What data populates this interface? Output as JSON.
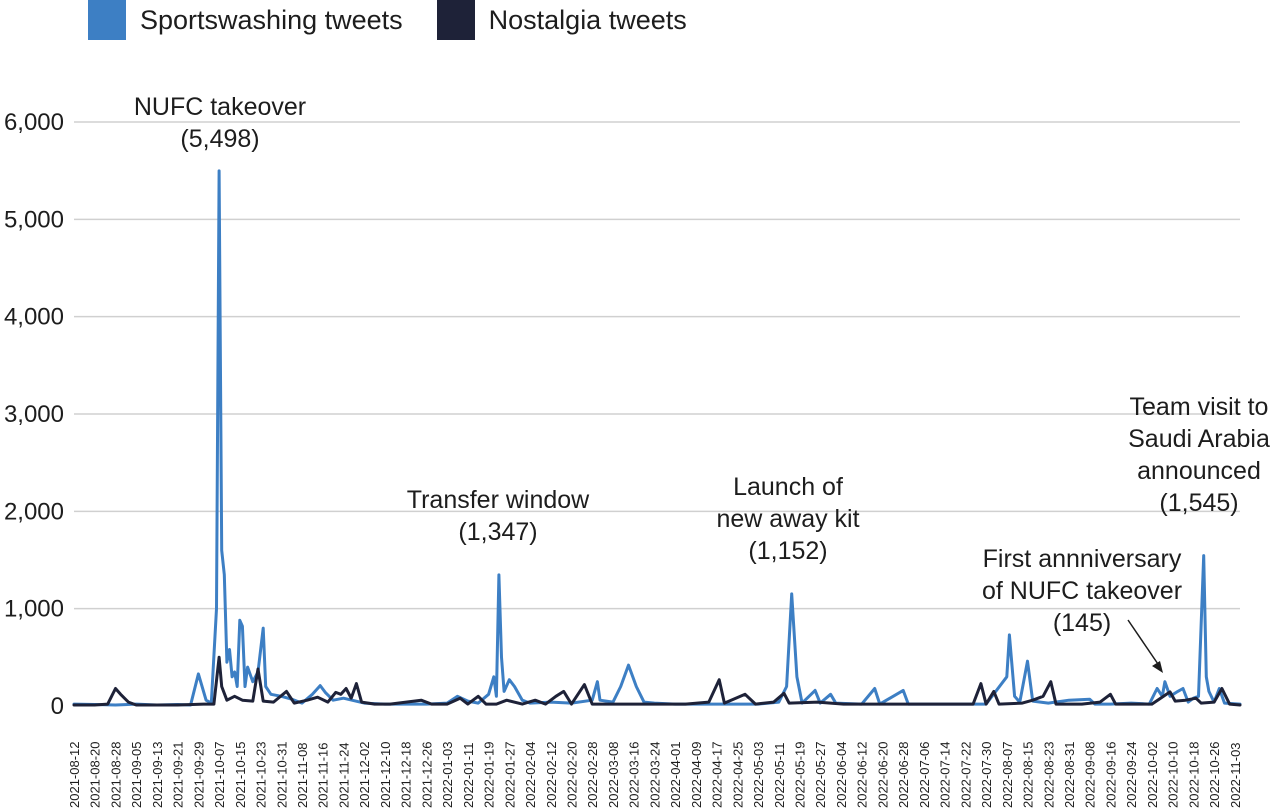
{
  "chart_data": {
    "type": "line",
    "xlabel": "",
    "ylabel": "",
    "ylim": [
      0,
      6000
    ],
    "grid": true,
    "legend_position": "top-left",
    "legend": [
      {
        "name": "Sportswashing tweets",
        "color": "#3d7fc4"
      },
      {
        "name": "Nostalgia tweets",
        "color": "#1e2238"
      }
    ],
    "y_ticks": [
      0,
      1000,
      2000,
      3000,
      4000,
      5000,
      6000
    ],
    "y_tick_labels": [
      "0",
      "1,000",
      "2,000",
      "3,000",
      "4,000",
      "5,000",
      "6,000"
    ],
    "x_range": [
      "2021-08-12",
      "2022-11-05"
    ],
    "x_tick_labels": [
      "2021-08-12",
      "2021-08-20",
      "2021-08-28",
      "2021-09-05",
      "2021-09-13",
      "2021-09-21",
      "2021-09-29",
      "2021-10-07",
      "2021-10-15",
      "2021-10-23",
      "2021-10-31",
      "2021-11-08",
      "2021-11-16",
      "2021-11-24",
      "2021-12-02",
      "2021-12-10",
      "2021-12-18",
      "2021-12-26",
      "2022-01-03",
      "2022-01-11",
      "2022-01-19",
      "2022-01-27",
      "2022-02-04",
      "2022-02-12",
      "2022-02-20",
      "2022-02-28",
      "2022-03-08",
      "2022-03-16",
      "2022-03-24",
      "2022-04-01",
      "2022-04-09",
      "2022-04-17",
      "2022-04-25",
      "2022-05-03",
      "2022-05-11",
      "2022-05-19",
      "2022-05-27",
      "2022-06-04",
      "2022-06-12",
      "2022-06-20",
      "2022-06-28",
      "2022-07-06",
      "2022-07-14",
      "2022-07-22",
      "2022-07-30",
      "2022-08-07",
      "2022-08-15",
      "2022-08-23",
      "2022-08-31",
      "2022-09-08",
      "2022-09-16",
      "2022-09-24",
      "2022-10-02",
      "2022-10-10",
      "2022-10-18",
      "2022-10-26",
      "2022-11-03"
    ],
    "series": [
      {
        "name": "Sportswashing tweets",
        "color": "#3d7fc4",
        "points": [
          [
            "2021-08-12",
            20
          ],
          [
            "2021-08-20",
            15
          ],
          [
            "2021-08-28",
            10
          ],
          [
            "2021-09-05",
            20
          ],
          [
            "2021-09-13",
            10
          ],
          [
            "2021-09-21",
            15
          ],
          [
            "2021-09-26",
            10
          ],
          [
            "2021-09-29",
            330
          ],
          [
            "2021-10-02",
            60
          ],
          [
            "2021-10-04",
            30
          ],
          [
            "2021-10-06",
            1000
          ],
          [
            "2021-10-07",
            5498
          ],
          [
            "2021-10-08",
            1600
          ],
          [
            "2021-10-09",
            1350
          ],
          [
            "2021-10-10",
            450
          ],
          [
            "2021-10-11",
            580
          ],
          [
            "2021-10-12",
            300
          ],
          [
            "2021-10-13",
            350
          ],
          [
            "2021-10-14",
            200
          ],
          [
            "2021-10-15",
            880
          ],
          [
            "2021-10-16",
            820
          ],
          [
            "2021-10-17",
            200
          ],
          [
            "2021-10-18",
            400
          ],
          [
            "2021-10-20",
            250
          ],
          [
            "2021-10-22",
            350
          ],
          [
            "2021-10-24",
            800
          ],
          [
            "2021-10-25",
            200
          ],
          [
            "2021-10-27",
            120
          ],
          [
            "2021-10-31",
            100
          ],
          [
            "2021-11-04",
            70
          ],
          [
            "2021-11-08",
            30
          ],
          [
            "2021-11-12",
            120
          ],
          [
            "2021-11-15",
            210
          ],
          [
            "2021-11-17",
            140
          ],
          [
            "2021-11-20",
            60
          ],
          [
            "2021-11-24",
            80
          ],
          [
            "2021-12-02",
            30
          ],
          [
            "2021-12-10",
            20
          ],
          [
            "2021-12-18",
            20
          ],
          [
            "2021-12-26",
            20
          ],
          [
            "2022-01-03",
            30
          ],
          [
            "2022-01-07",
            100
          ],
          [
            "2022-01-11",
            50
          ],
          [
            "2022-01-15",
            30
          ],
          [
            "2022-01-19",
            120
          ],
          [
            "2022-01-21",
            300
          ],
          [
            "2022-01-22",
            100
          ],
          [
            "2022-01-23",
            1347
          ],
          [
            "2022-01-24",
            500
          ],
          [
            "2022-01-25",
            150
          ],
          [
            "2022-01-27",
            270
          ],
          [
            "2022-01-29",
            200
          ],
          [
            "2022-02-01",
            60
          ],
          [
            "2022-02-04",
            30
          ],
          [
            "2022-02-12",
            40
          ],
          [
            "2022-02-20",
            30
          ],
          [
            "2022-02-28",
            60
          ],
          [
            "2022-03-02",
            250
          ],
          [
            "2022-03-03",
            60
          ],
          [
            "2022-03-08",
            40
          ],
          [
            "2022-03-11",
            200
          ],
          [
            "2022-03-14",
            420
          ],
          [
            "2022-03-17",
            200
          ],
          [
            "2022-03-20",
            40
          ],
          [
            "2022-03-24",
            30
          ],
          [
            "2022-04-01",
            20
          ],
          [
            "2022-04-09",
            20
          ],
          [
            "2022-04-17",
            20
          ],
          [
            "2022-04-25",
            20
          ],
          [
            "2022-05-03",
            20
          ],
          [
            "2022-05-11",
            40
          ],
          [
            "2022-05-14",
            200
          ],
          [
            "2022-05-16",
            1152
          ],
          [
            "2022-05-18",
            300
          ],
          [
            "2022-05-20",
            30
          ],
          [
            "2022-05-25",
            160
          ],
          [
            "2022-05-27",
            30
          ],
          [
            "2022-05-31",
            120
          ],
          [
            "2022-06-02",
            30
          ],
          [
            "2022-06-12",
            20
          ],
          [
            "2022-06-17",
            180
          ],
          [
            "2022-06-19",
            20
          ],
          [
            "2022-06-28",
            160
          ],
          [
            "2022-06-30",
            20
          ],
          [
            "2022-07-06",
            20
          ],
          [
            "2022-07-14",
            20
          ],
          [
            "2022-07-22",
            20
          ],
          [
            "2022-07-30",
            20
          ],
          [
            "2022-08-07",
            300
          ],
          [
            "2022-08-08",
            730
          ],
          [
            "2022-08-10",
            100
          ],
          [
            "2022-08-12",
            40
          ],
          [
            "2022-08-15",
            460
          ],
          [
            "2022-08-17",
            50
          ],
          [
            "2022-08-20",
            40
          ],
          [
            "2022-08-23",
            30
          ],
          [
            "2022-08-31",
            60
          ],
          [
            "2022-09-08",
            70
          ],
          [
            "2022-09-10",
            20
          ],
          [
            "2022-09-16",
            20
          ],
          [
            "2022-09-24",
            30
          ],
          [
            "2022-10-01",
            20
          ],
          [
            "2022-10-04",
            180
          ],
          [
            "2022-10-06",
            100
          ],
          [
            "2022-10-07",
            250
          ],
          [
            "2022-10-09",
            100
          ],
          [
            "2022-10-12",
            150
          ],
          [
            "2022-10-14",
            180
          ],
          [
            "2022-10-16",
            40
          ],
          [
            "2022-10-18",
            80
          ],
          [
            "2022-10-20",
            100
          ],
          [
            "2022-10-22",
            1545
          ],
          [
            "2022-10-23",
            300
          ],
          [
            "2022-10-24",
            150
          ],
          [
            "2022-10-26",
            40
          ],
          [
            "2022-10-28",
            180
          ],
          [
            "2022-10-30",
            30
          ],
          [
            "2022-11-05",
            20
          ]
        ]
      },
      {
        "name": "Nostalgia tweets",
        "color": "#1e2238",
        "points": [
          [
            "2021-08-12",
            10
          ],
          [
            "2021-08-20",
            10
          ],
          [
            "2021-08-25",
            20
          ],
          [
            "2021-08-28",
            180
          ],
          [
            "2021-08-30",
            120
          ],
          [
            "2021-09-02",
            40
          ],
          [
            "2021-09-05",
            10
          ],
          [
            "2021-09-13",
            10
          ],
          [
            "2021-09-21",
            10
          ],
          [
            "2021-10-01",
            20
          ],
          [
            "2021-10-05",
            20
          ],
          [
            "2021-10-07",
            500
          ],
          [
            "2021-10-08",
            200
          ],
          [
            "2021-10-10",
            60
          ],
          [
            "2021-10-13",
            100
          ],
          [
            "2021-10-16",
            60
          ],
          [
            "2021-10-20",
            50
          ],
          [
            "2021-10-22",
            380
          ],
          [
            "2021-10-24",
            50
          ],
          [
            "2021-10-28",
            40
          ],
          [
            "2021-11-02",
            150
          ],
          [
            "2021-11-05",
            30
          ],
          [
            "2021-11-10",
            60
          ],
          [
            "2021-11-14",
            90
          ],
          [
            "2021-11-18",
            40
          ],
          [
            "2021-11-21",
            140
          ],
          [
            "2021-11-23",
            120
          ],
          [
            "2021-11-25",
            180
          ],
          [
            "2021-11-27",
            80
          ],
          [
            "2021-11-29",
            230
          ],
          [
            "2021-12-01",
            40
          ],
          [
            "2021-12-06",
            20
          ],
          [
            "2021-12-12",
            20
          ],
          [
            "2021-12-24",
            60
          ],
          [
            "2021-12-28",
            20
          ],
          [
            "2022-01-03",
            20
          ],
          [
            "2022-01-08",
            80
          ],
          [
            "2022-01-11",
            20
          ],
          [
            "2022-01-15",
            100
          ],
          [
            "2022-01-18",
            20
          ],
          [
            "2022-01-22",
            20
          ],
          [
            "2022-01-26",
            60
          ],
          [
            "2022-02-01",
            20
          ],
          [
            "2022-02-06",
            60
          ],
          [
            "2022-02-10",
            20
          ],
          [
            "2022-02-14",
            100
          ],
          [
            "2022-02-17",
            150
          ],
          [
            "2022-02-20",
            20
          ],
          [
            "2022-02-25",
            220
          ],
          [
            "2022-02-28",
            20
          ],
          [
            "2022-03-06",
            20
          ],
          [
            "2022-03-12",
            20
          ],
          [
            "2022-03-20",
            20
          ],
          [
            "2022-03-28",
            20
          ],
          [
            "2022-04-05",
            20
          ],
          [
            "2022-04-14",
            40
          ],
          [
            "2022-04-18",
            270
          ],
          [
            "2022-04-20",
            30
          ],
          [
            "2022-04-28",
            120
          ],
          [
            "2022-05-02",
            20
          ],
          [
            "2022-05-09",
            40
          ],
          [
            "2022-05-13",
            130
          ],
          [
            "2022-05-15",
            30
          ],
          [
            "2022-05-26",
            40
          ],
          [
            "2022-06-05",
            20
          ],
          [
            "2022-06-15",
            20
          ],
          [
            "2022-06-25",
            20
          ],
          [
            "2022-07-05",
            20
          ],
          [
            "2022-07-15",
            20
          ],
          [
            "2022-07-25",
            20
          ],
          [
            "2022-07-28",
            230
          ],
          [
            "2022-07-30",
            20
          ],
          [
            "2022-08-02",
            150
          ],
          [
            "2022-08-04",
            20
          ],
          [
            "2022-08-13",
            30
          ],
          [
            "2022-08-17",
            60
          ],
          [
            "2022-08-21",
            100
          ],
          [
            "2022-08-24",
            250
          ],
          [
            "2022-08-26",
            20
          ],
          [
            "2022-09-05",
            20
          ],
          [
            "2022-09-12",
            40
          ],
          [
            "2022-09-16",
            120
          ],
          [
            "2022-09-18",
            20
          ],
          [
            "2022-09-24",
            20
          ],
          [
            "2022-10-02",
            20
          ],
          [
            "2022-10-09",
            145
          ],
          [
            "2022-10-11",
            50
          ],
          [
            "2022-10-15",
            60
          ],
          [
            "2022-10-19",
            80
          ],
          [
            "2022-10-21",
            30
          ],
          [
            "2022-10-26",
            40
          ],
          [
            "2022-10-29",
            180
          ],
          [
            "2022-11-01",
            20
          ],
          [
            "2022-11-05",
            10
          ]
        ]
      }
    ],
    "annotations": [
      {
        "lines": [
          "NUFC takeover",
          "(5,498)"
        ]
      },
      {
        "lines": [
          "Transfer window",
          "(1,347)"
        ]
      },
      {
        "lines": [
          "Launch of",
          "new away kit",
          "(1,152)"
        ]
      },
      {
        "lines": [
          "First annniversary",
          "of NUFC takeover",
          "(145)"
        ]
      },
      {
        "lines": [
          "Team visit to",
          "Saudi Arabia",
          "announced",
          "(1,545)"
        ]
      }
    ]
  }
}
